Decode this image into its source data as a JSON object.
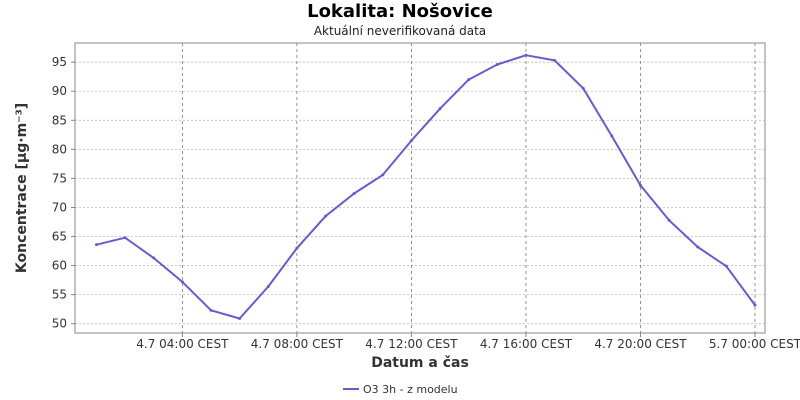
{
  "title": "Lokalita: Nošovice",
  "subtitle": "Aktuální neverifikovaná data",
  "colors": {
    "series": "#6a5acd",
    "grid": "#bbbbbb",
    "axis": "#888888"
  },
  "chart_data": {
    "type": "line",
    "title": "Lokalita: Nošovice",
    "subtitle": "Aktuální neverifikovaná data",
    "xlabel": "Datum a čas",
    "ylabel": "Koncentrace [µg·m⁻³]",
    "x_ticks": [
      "4.7 04:00 CEST",
      "4.7 08:00 CEST",
      "4.7 12:00 CEST",
      "4.7 16:00 CEST",
      "4.7 20:00 CEST",
      "5.7 00:00 CEST"
    ],
    "x_tick_hours": [
      4,
      8,
      12,
      16,
      20,
      24
    ],
    "xlim": [
      0.25,
      24.35
    ],
    "y_ticks": [
      50,
      55,
      60,
      65,
      70,
      75,
      80,
      85,
      90,
      95
    ],
    "ylim": [
      48.4,
      98.3
    ],
    "grid": true,
    "legend_position": "bottom",
    "series": [
      {
        "name": "O3 3h - z modelu",
        "color": "#6a5acd",
        "x": [
          1,
          2,
          3,
          4,
          5,
          6,
          7,
          8,
          9,
          10,
          11,
          12,
          13,
          14,
          15,
          16,
          17,
          18,
          19,
          20,
          21,
          22,
          23,
          24
        ],
        "y": [
          63.6,
          64.8,
          61.3,
          57.2,
          52.3,
          50.9,
          56.4,
          63.0,
          68.5,
          72.4,
          75.6,
          81.5,
          87.0,
          92.0,
          94.6,
          96.2,
          95.3,
          90.5,
          82.3,
          73.8,
          67.8,
          63.2,
          59.9,
          53.2
        ]
      }
    ]
  }
}
